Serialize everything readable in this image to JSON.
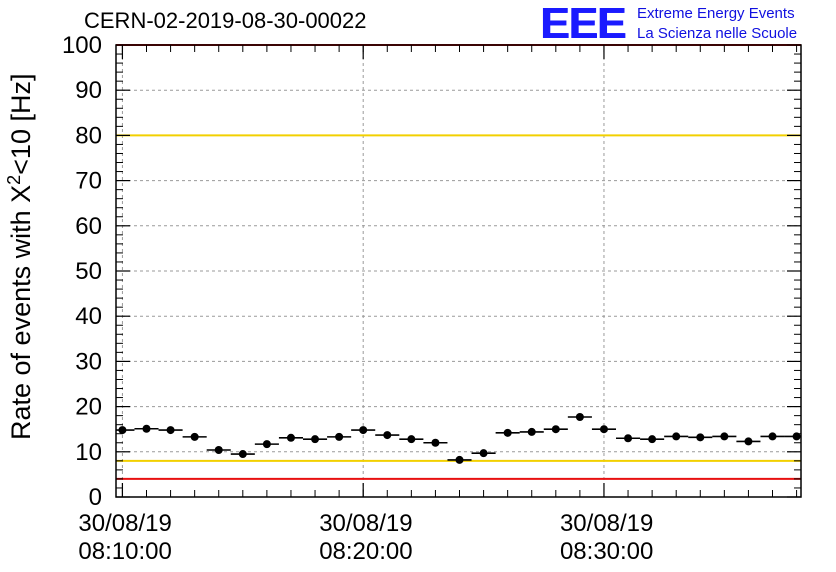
{
  "header": {
    "run_title": "CERN-02-2019-08-30-00022"
  },
  "logo": {
    "mark": "EEE",
    "line1": "Extreme Energy Events",
    "line2": "La Scienza nelle Scuole"
  },
  "chart_data": {
    "type": "scatter",
    "ylabel_main": "Rate of events with X",
    "ylabel_sup": "2",
    "ylabel_tail": "<10 [Hz]",
    "ylim": [
      0,
      100
    ],
    "yticks": [
      0,
      10,
      20,
      30,
      40,
      50,
      60,
      70,
      80,
      90,
      100
    ],
    "xlim": [
      "2019-08-30 08:09:44",
      "2019-08-30 08:38:11"
    ],
    "xticks": [
      {
        "time": "2019-08-30 08:10:00",
        "date_label": "30/08/19",
        "time_label": "08:10:00"
      },
      {
        "time": "2019-08-30 08:20:00",
        "date_label": "30/08/19",
        "time_label": "08:20:00"
      },
      {
        "time": "2019-08-30 08:30:00",
        "date_label": "30/08/19",
        "time_label": "08:30:00"
      }
    ],
    "grid": true,
    "reference_lines": [
      {
        "y": 80,
        "color": "#f2d000"
      },
      {
        "y": 8,
        "color": "#f2d000"
      },
      {
        "y": 100,
        "color": "#e81010"
      },
      {
        "y": 4,
        "color": "#e81010"
      }
    ],
    "bin_width_seconds": 60,
    "x": [
      "2019-08-30 08:10:00",
      "2019-08-30 08:11:00",
      "2019-08-30 08:12:00",
      "2019-08-30 08:13:00",
      "2019-08-30 08:14:00",
      "2019-08-30 08:15:00",
      "2019-08-30 08:16:00",
      "2019-08-30 08:17:00",
      "2019-08-30 08:18:00",
      "2019-08-30 08:19:00",
      "2019-08-30 08:20:00",
      "2019-08-30 08:21:00",
      "2019-08-30 08:22:00",
      "2019-08-30 08:23:00",
      "2019-08-30 08:24:00",
      "2019-08-30 08:25:00",
      "2019-08-30 08:26:00",
      "2019-08-30 08:27:00",
      "2019-08-30 08:28:00",
      "2019-08-30 08:29:00",
      "2019-08-30 08:30:00",
      "2019-08-30 08:31:00",
      "2019-08-30 08:32:00",
      "2019-08-30 08:33:00",
      "2019-08-30 08:34:00",
      "2019-08-30 08:35:00",
      "2019-08-30 08:36:00",
      "2019-08-30 08:37:00",
      "2019-08-30 08:38:00"
    ],
    "y": [
      14.8,
      15.1,
      14.8,
      13.3,
      10.4,
      9.5,
      11.7,
      13.1,
      12.8,
      13.3,
      14.8,
      13.7,
      12.8,
      12.0,
      8.2,
      9.7,
      14.2,
      14.4,
      15.0,
      17.7,
      15.0,
      13.0,
      12.8,
      13.4,
      13.2,
      13.4,
      12.3,
      13.4,
      13.4
    ],
    "marker_color": "#000000"
  }
}
